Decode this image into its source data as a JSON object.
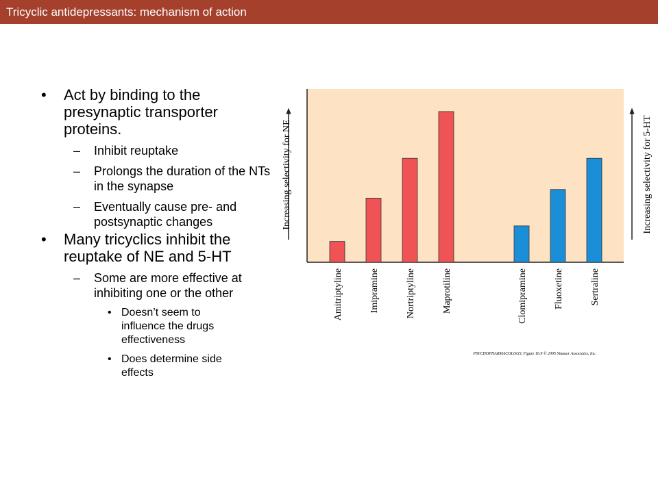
{
  "header": {
    "title": "Tricyclic antidepressants: mechanism of action"
  },
  "bullets": [
    {
      "text": "Act by binding to the presynaptic transporter proteins.",
      "sub": [
        {
          "text": "Inhibit reuptake"
        },
        {
          "text": "Prolongs the duration of the NTs in the synapse"
        },
        {
          "text": "Eventually cause pre- and postsynaptic changes"
        }
      ]
    },
    {
      "text": "Many tricyclics inhibit the reuptake of NE and 5-HT",
      "sub": [
        {
          "text": "Some are more effective at inhibiting one or the other",
          "sub": [
            {
              "text": "Doesn’t seem to influence the drugs effectiveness"
            },
            {
              "text": "Does determine side effects"
            }
          ]
        }
      ]
    }
  ],
  "chart_data": {
    "type": "bar",
    "categories": [
      "Amitriptyline",
      "Imipramine",
      "Nortriptyline",
      "Maprotiline",
      "Clomipramine",
      "Fluoxetine",
      "Sertraline"
    ],
    "values": [
      12,
      37,
      60,
      87,
      21,
      42,
      60
    ],
    "colors": [
      "#ef5356",
      "#ef5356",
      "#ef5356",
      "#ef5356",
      "#1a8fd8",
      "#1a8fd8",
      "#1a8fd8"
    ],
    "ylim": [
      0,
      100
    ],
    "y_label": "Increasing selectivity for NE",
    "y2_label": "Increasing selectivity for 5-HT",
    "credit": "PSYCHOPHARMACOLOGY, Figure 16.9 © 2005 Sinauer Associates, Inc."
  }
}
